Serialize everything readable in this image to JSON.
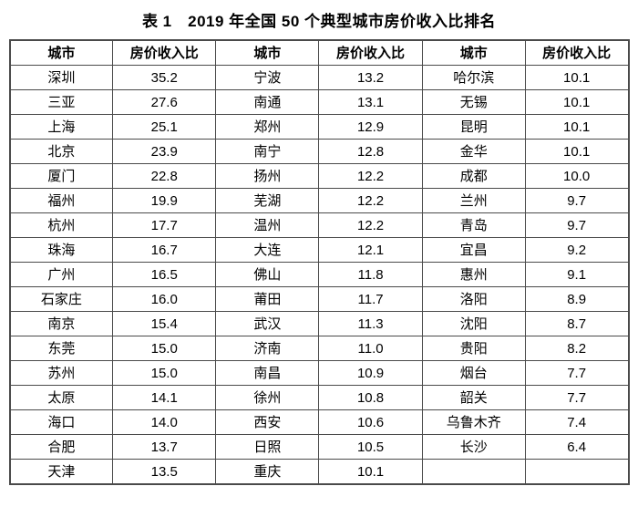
{
  "title": "表 1　2019 年全国 50 个典型城市房价收入比排名",
  "colors": {
    "background": "#ffffff",
    "text": "#000000",
    "border": "#4a4a4a"
  },
  "table": {
    "headers": [
      "城市",
      "房价收入比",
      "城市",
      "房价收入比",
      "城市",
      "房价收入比"
    ],
    "rows": [
      [
        "深圳",
        "35.2",
        "宁波",
        "13.2",
        "哈尔滨",
        "10.1"
      ],
      [
        "三亚",
        "27.6",
        "南通",
        "13.1",
        "无锡",
        "10.1"
      ],
      [
        "上海",
        "25.1",
        "郑州",
        "12.9",
        "昆明",
        "10.1"
      ],
      [
        "北京",
        "23.9",
        "南宁",
        "12.8",
        "金华",
        "10.1"
      ],
      [
        "厦门",
        "22.8",
        "扬州",
        "12.2",
        "成都",
        "10.0"
      ],
      [
        "福州",
        "19.9",
        "芜湖",
        "12.2",
        "兰州",
        "9.7"
      ],
      [
        "杭州",
        "17.7",
        "温州",
        "12.2",
        "青岛",
        "9.7"
      ],
      [
        "珠海",
        "16.7",
        "大连",
        "12.1",
        "宜昌",
        "9.2"
      ],
      [
        "广州",
        "16.5",
        "佛山",
        "11.8",
        "惠州",
        "9.1"
      ],
      [
        "石家庄",
        "16.0",
        "莆田",
        "11.7",
        "洛阳",
        "8.9"
      ],
      [
        "南京",
        "15.4",
        "武汉",
        "11.3",
        "沈阳",
        "8.7"
      ],
      [
        "东莞",
        "15.0",
        "济南",
        "11.0",
        "贵阳",
        "8.2"
      ],
      [
        "苏州",
        "15.0",
        "南昌",
        "10.9",
        "烟台",
        "7.7"
      ],
      [
        "太原",
        "14.1",
        "徐州",
        "10.8",
        "韶关",
        "7.7"
      ],
      [
        "海口",
        "14.0",
        "西安",
        "10.6",
        "乌鲁木齐",
        "7.4"
      ],
      [
        "合肥",
        "13.7",
        "日照",
        "10.5",
        "长沙",
        "6.4"
      ],
      [
        "天津",
        "13.5",
        "重庆",
        "10.1",
        "",
        ""
      ]
    ]
  }
}
